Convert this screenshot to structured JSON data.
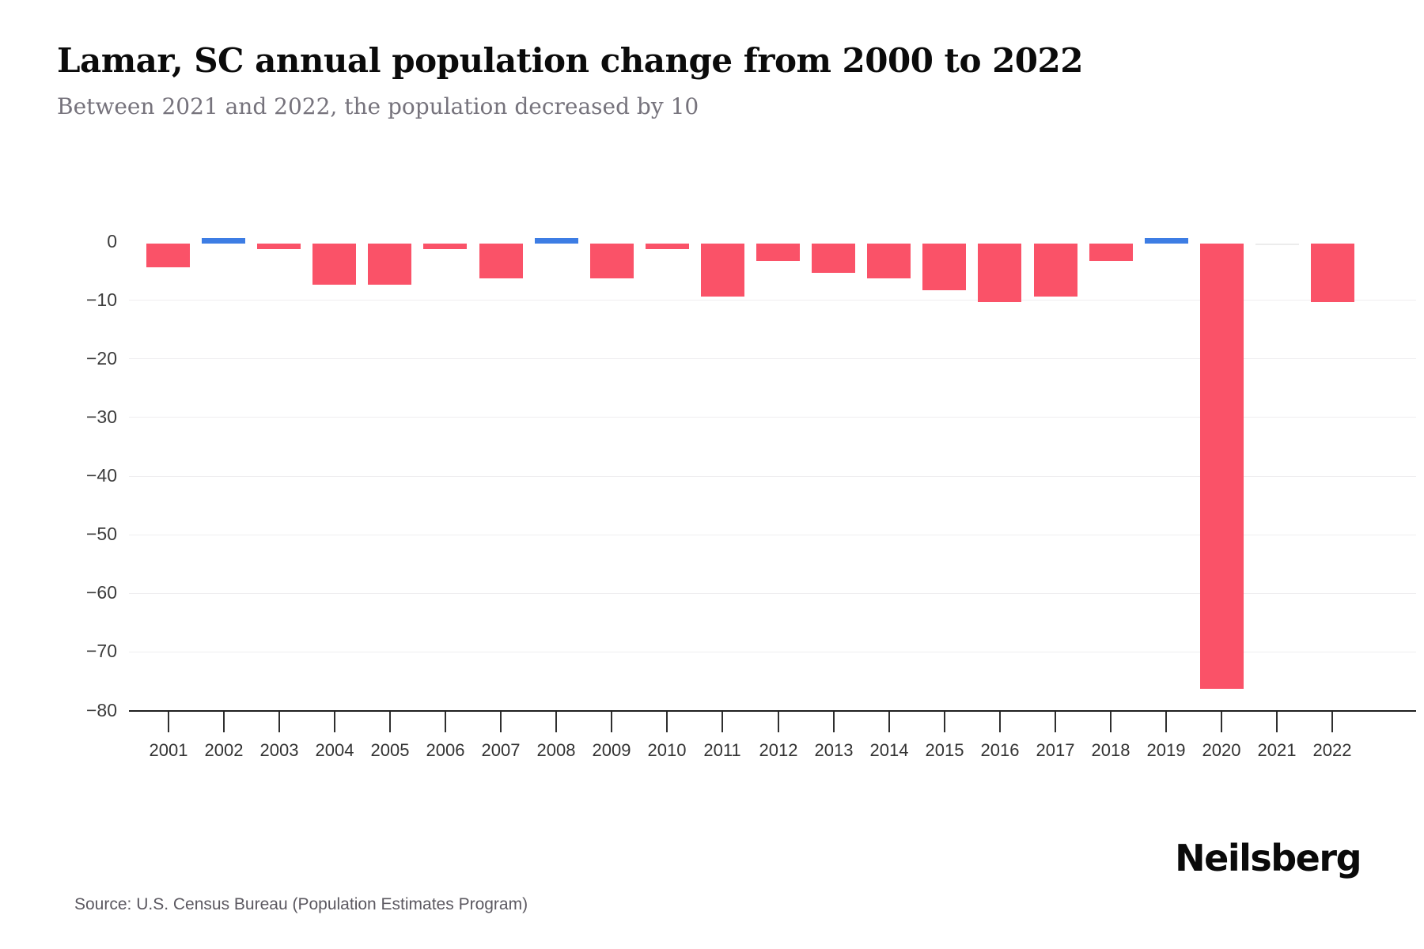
{
  "header": {
    "title": "Lamar, SC annual population change from 2000 to 2022",
    "subtitle": "Between 2021 and 2022, the population decreased by 10"
  },
  "chart_data": {
    "type": "bar",
    "title": "Lamar, SC annual population change from 2000 to 2022",
    "subtitle": "Between 2021 and 2022, the population decreased by 10",
    "categories": [
      "2001",
      "2002",
      "2003",
      "2004",
      "2005",
      "2006",
      "2007",
      "2008",
      "2009",
      "2010",
      "2011",
      "2012",
      "2013",
      "2014",
      "2015",
      "2016",
      "2017",
      "2018",
      "2019",
      "2020",
      "2021",
      "2022"
    ],
    "values": [
      -4,
      1,
      -1,
      -7,
      -7,
      -1,
      -6,
      1,
      -6,
      -1,
      -9,
      -3,
      -5,
      -6,
      -8,
      -10,
      -9,
      -3,
      1,
      -76,
      0,
      -10
    ],
    "xlabel": "",
    "ylabel": "",
    "ylim": [
      -80,
      2
    ],
    "yticks": [
      0,
      -10,
      -20,
      -30,
      -40,
      -50,
      -60,
      -70,
      -80
    ],
    "grid": true,
    "legend": false
  },
  "colors": {
    "negative_bar": "#FA5268",
    "positive_bar": "#3D7DE4",
    "zero_bar": "#ECECEC",
    "grid": "#EFEEF0",
    "axis": "#1F1F1F"
  },
  "footer": {
    "source": "Source: U.S. Census Bureau (Population Estimates Program)",
    "brand": "Neilsberg"
  }
}
